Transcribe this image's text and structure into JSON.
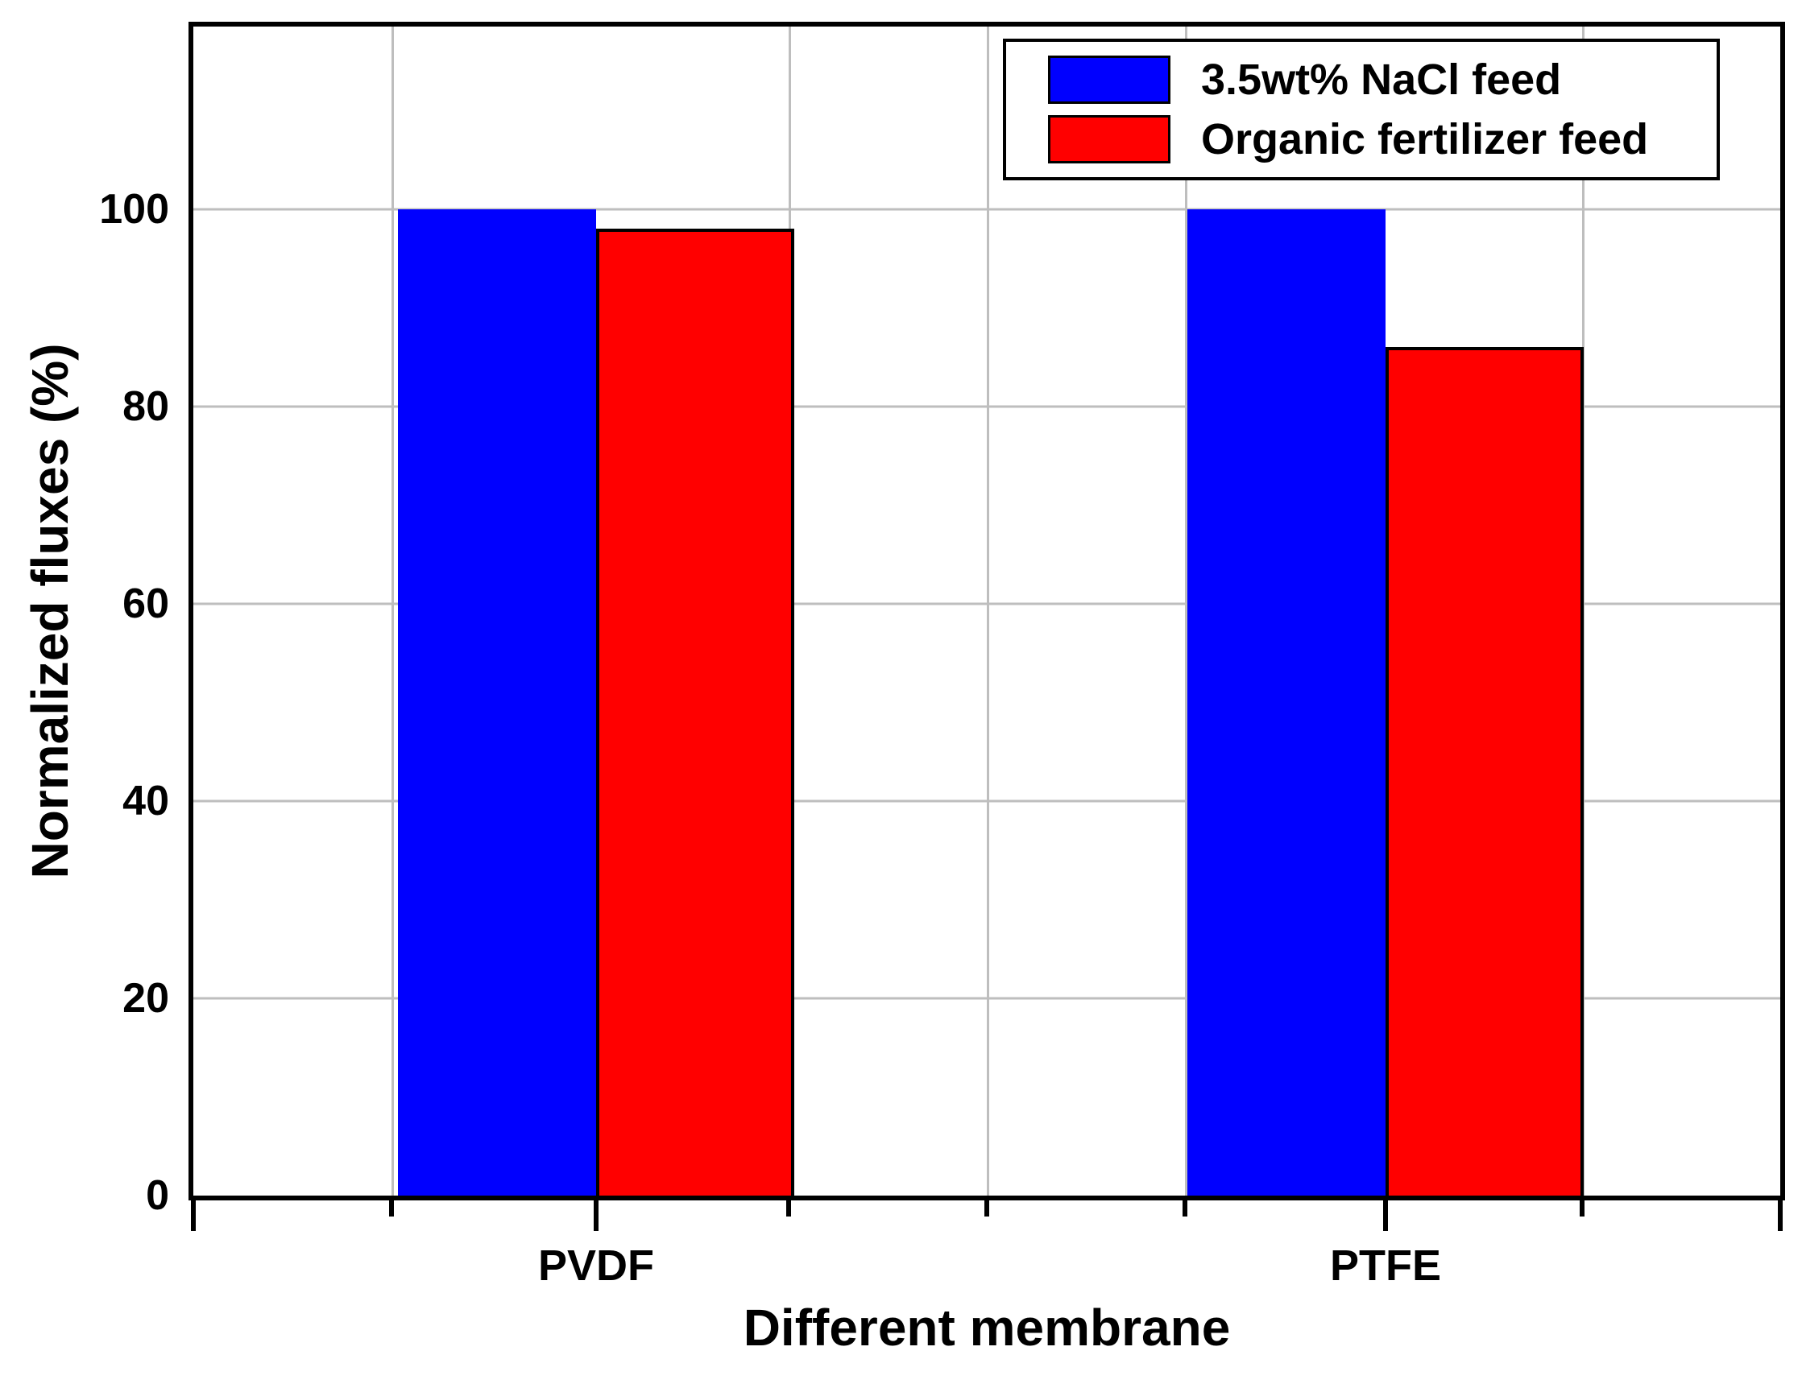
{
  "chart_data": {
    "type": "bar",
    "title": "",
    "categories": [
      "PVDF",
      "PTFE"
    ],
    "series": [
      {
        "name": "3.5wt% NaCl feed",
        "color": "#0000ff",
        "values": [
          100,
          100
        ]
      },
      {
        "name": "Organic fertilizer feed",
        "color": "#ff0000",
        "values": [
          98,
          86
        ]
      }
    ],
    "xlabel": "Different membrane",
    "ylabel": "Normalized fluxes (%)",
    "ylim": [
      0,
      118.5
    ],
    "yticks": [
      0,
      20,
      40,
      60,
      80,
      100
    ],
    "grid": "horizontal major gridlines + faint vertical minor gridlines",
    "legend_position": "top-right inside plot, boxed"
  },
  "colors": {
    "background": "#ffffff",
    "axis": "#000000",
    "gridline": "#bebebe",
    "bar_blue": "#0000ff",
    "bar_red": "#ff0000"
  }
}
